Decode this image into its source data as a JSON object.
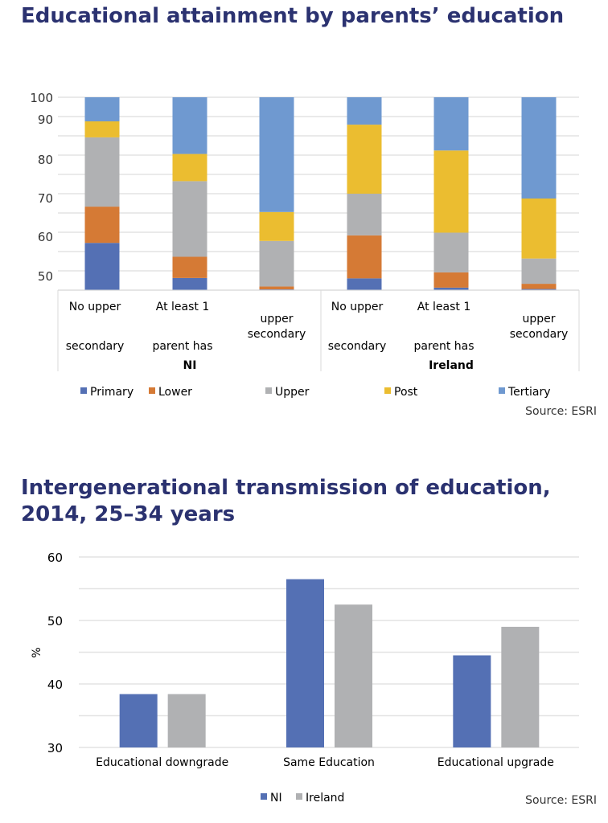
{
  "colors": {
    "title": "#2b3270",
    "Primary": "#5470b4",
    "Lower": "#d57a35",
    "Upper": "#b0b1b3",
    "Post": "#ebbd30",
    "Tertiary": "#6f99d0",
    "NI": "#5470b4",
    "Ireland": "#b0b1b3"
  },
  "chart_data": [
    {
      "type": "bar",
      "stacked": true,
      "title": "Educational attainment by parents’ education",
      "y_tick_labels": [
        "100",
        "90",
        "80",
        "70",
        "60",
        "50"
      ],
      "ylim": [
        0,
        100
      ],
      "grid": true,
      "groups": [
        "NI",
        "Ireland"
      ],
      "category_labels": [
        [
          "No upper",
          "secondary"
        ],
        [
          "At least 1",
          "parent has"
        ],
        [
          "upper",
          "secondary"
        ],
        [
          "No upper",
          "secondary"
        ],
        [
          "At least 1",
          "parent has"
        ],
        [
          "upper",
          "secondary"
        ]
      ],
      "series": [
        {
          "name": "Primary",
          "values": [
            24.5,
            6.3,
            0.4,
            6.1,
            1.3,
            0.6
          ]
        },
        {
          "name": "Lower",
          "values": [
            18.8,
            11.0,
            1.5,
            22.3,
            7.9,
            2.7
          ]
        },
        {
          "name": "Upper",
          "values": [
            35.9,
            39.2,
            23.6,
            21.6,
            20.6,
            13.1
          ]
        },
        {
          "name": "Post",
          "values": [
            8.3,
            14.1,
            15.0,
            35.8,
            42.6,
            31.1
          ]
        },
        {
          "name": "Tertiary",
          "values": [
            12.5,
            29.4,
            59.5,
            14.2,
            27.6,
            52.5
          ]
        }
      ],
      "legend_placement": "bottom",
      "source": "Source: ESRI"
    },
    {
      "type": "bar",
      "title_lines": [
        "Intergenerational transmission of education,",
        "2014, 25–34 years"
      ],
      "ylabel": "%",
      "ylim": [
        30,
        60
      ],
      "y_ticks": [
        30,
        40,
        50,
        60
      ],
      "grid": true,
      "categories": [
        "Educational downgrade",
        "Same Education",
        "Educational upgrade"
      ],
      "series": [
        {
          "name": "NI",
          "values": [
            38.4,
            56.5,
            44.5
          ]
        },
        {
          "name": "Ireland",
          "values": [
            38.4,
            52.5,
            49.0
          ]
        }
      ],
      "legend_placement": "bottom",
      "source": "Source: ESRI"
    }
  ]
}
